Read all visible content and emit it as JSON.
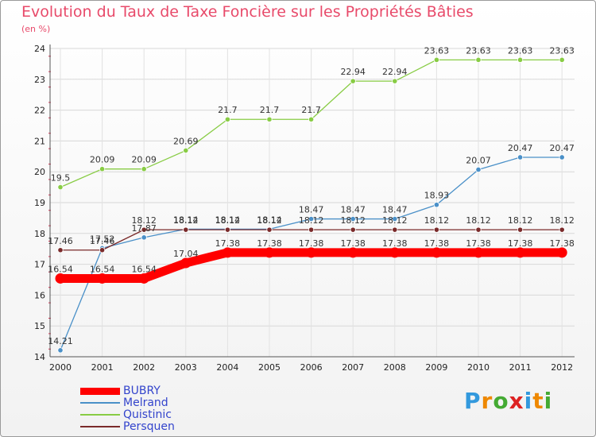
{
  "chart_data": {
    "type": "line",
    "title": "Evolution du Taux de Taxe Foncière sur les Propriétés Bâties",
    "subtitle": "(en %)",
    "xlabel": "",
    "ylabel": "",
    "x": [
      "2000",
      "2001",
      "2002",
      "2003",
      "2004",
      "2005",
      "2006",
      "2007",
      "2008",
      "2009",
      "2010",
      "2011",
      "2012"
    ],
    "ylim": [
      14,
      24
    ],
    "yticks": [
      14,
      15,
      16,
      17,
      18,
      19,
      20,
      21,
      22,
      23,
      24
    ],
    "grid": true,
    "legend_position": "bottom-left",
    "series": [
      {
        "name": "BUBRY",
        "color": "#ff0000",
        "values": [
          16.54,
          16.54,
          16.54,
          17.04,
          17.38,
          17.38,
          17.38,
          17.38,
          17.38,
          17.38,
          17.38,
          17.38,
          17.38
        ],
        "labels": [
          "16.54",
          "16.54",
          "16.54",
          "17.04",
          "17.38",
          "17.38",
          "17.38",
          "17.38",
          "17.38",
          "17.38",
          "17.38",
          "17.38",
          "17.38"
        ]
      },
      {
        "name": "Melrand",
        "color": "#4a90c8",
        "values": [
          14.21,
          17.52,
          17.87,
          18.14,
          18.14,
          18.14,
          18.47,
          18.47,
          18.47,
          18.93,
          20.07,
          20.47,
          20.47
        ],
        "labels": [
          "14.21",
          "17.52",
          "17.87",
          "18.14",
          "18.14",
          "18.14",
          "18.47",
          "18.47",
          "18.47",
          "18.93",
          "20.07",
          "20.47",
          "20.47"
        ]
      },
      {
        "name": "Quistinic",
        "color": "#88cc44",
        "values": [
          19.5,
          20.09,
          20.09,
          20.69,
          21.7,
          21.7,
          21.7,
          22.94,
          22.94,
          23.63,
          23.63,
          23.63,
          23.63
        ],
        "labels": [
          "19.5",
          "20.09",
          "20.09",
          "20.69",
          "21.7",
          "21.7",
          "21.7",
          "22.94",
          "22.94",
          "23.63",
          "23.63",
          "23.63",
          "23.63"
        ]
      },
      {
        "name": "Persquen",
        "color": "#7a2a2a",
        "values": [
          17.46,
          17.46,
          18.12,
          18.12,
          18.12,
          18.12,
          18.12,
          18.12,
          18.12,
          18.12,
          18.12,
          18.12,
          18.12
        ],
        "labels": [
          "17.46",
          "17.46",
          "18.12",
          "18.12",
          "18.12",
          "18.12",
          "18.12",
          "18.12",
          "18.12",
          "18.12",
          "18.12",
          "18.12",
          "18.12"
        ]
      }
    ]
  },
  "logo": {
    "text": "Proxiti",
    "letters": [
      "P",
      "r",
      "o",
      "x",
      "i",
      "t",
      "i"
    ],
    "colors": [
      "#3399dd",
      "#ee8800",
      "#44aa33",
      "#dd2222",
      "#3399dd",
      "#ee8800",
      "#44aa33"
    ]
  }
}
